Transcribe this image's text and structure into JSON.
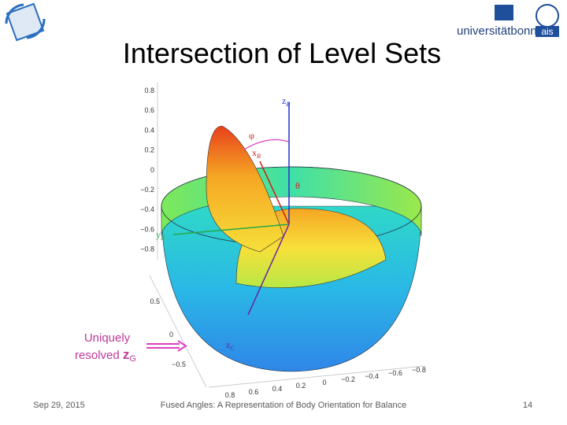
{
  "header": {
    "title": "Intersection of Level Sets",
    "logo": {
      "university": "universitätbonn",
      "group": "ais"
    }
  },
  "figure": {
    "z_ticks": [
      "0.8",
      "0.6",
      "0.4",
      "0.2",
      "0",
      "−0.2",
      "−0.4",
      "−0.6",
      "−0.8"
    ],
    "y_ticks": [
      "0.5",
      "0",
      "−0.5"
    ],
    "x_ticks": [
      "0.8",
      "0.6",
      "0.4",
      "0.2",
      "0",
      "−0.2",
      "−0.4",
      "−0.6",
      "−0.8"
    ],
    "labels": [
      {
        "main": "z",
        "sub": "B"
      },
      {
        "main": "φ",
        "sub": ""
      },
      {
        "main": "x",
        "sub": "B"
      },
      {
        "main": "θ",
        "sub": ""
      },
      {
        "main": "y",
        "sub": "B"
      },
      {
        "main": "z",
        "sub": "C"
      }
    ]
  },
  "annotation": {
    "line1": "Uniquely",
    "line2": "resolved",
    "symbol": "z",
    "sub": "G"
  },
  "footer": {
    "date": "Sep 29, 2015",
    "title": "Fused Angles: A Representation of Body Orientation for Balance",
    "page": "14"
  }
}
